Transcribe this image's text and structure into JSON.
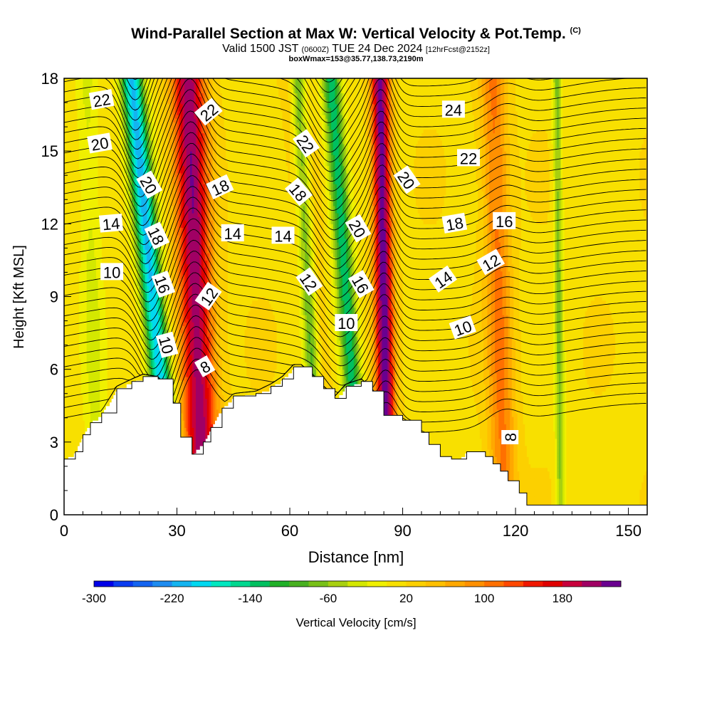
{
  "header": {
    "title": "Wind-Parallel Section at Max W: Vertical Velocity & Pot.Temp.",
    "copyright": "(C)",
    "subtitle_main": "Valid 1500 JST",
    "subtitle_utc": "(0600Z)",
    "subtitle_date": "TUE 24 Dec 2024",
    "subtitle_fcst": "[12hrFcst@2152z]",
    "box_info": "boxWmax=153@35.77,138.73,2190m"
  },
  "chart_data": {
    "type": "heatmap",
    "xlabel": "Distance [nm]",
    "ylabel": "Height [Kft MSL]",
    "xlim": [
      0,
      155
    ],
    "ylim": [
      0,
      18
    ],
    "x_ticks": [
      0,
      30,
      60,
      90,
      120,
      150
    ],
    "y_ticks": [
      0,
      3,
      6,
      9,
      12,
      15,
      18
    ],
    "colorbar": {
      "label": "Vertical Velocity [cm/s]",
      "tick_labels": [
        -300,
        -220,
        -140,
        -60,
        20,
        100,
        180
      ],
      "levels": [
        -300,
        -280,
        -260,
        -240,
        -220,
        -200,
        -180,
        -160,
        -140,
        -120,
        -100,
        -80,
        -60,
        -40,
        -20,
        0,
        20,
        40,
        60,
        80,
        100,
        120,
        140,
        160,
        180,
        200,
        220
      ],
      "colors": [
        "#0000e8",
        "#0a3cf0",
        "#1464f0",
        "#1e8cf0",
        "#14b4f0",
        "#00d8f0",
        "#00e8c0",
        "#00d890",
        "#00c060",
        "#20b028",
        "#48b020",
        "#78c018",
        "#a8d010",
        "#d4e800",
        "#f0f000",
        "#f8e000",
        "#fcd000",
        "#ffc000",
        "#ffa800",
        "#ff9000",
        "#ff7000",
        "#ff4800",
        "#f01800",
        "#e00000",
        "#c8003c",
        "#a00064",
        "#6a0090"
      ]
    },
    "terrain_profile": {
      "x_nm": [
        0,
        3,
        5,
        7,
        10,
        14,
        18,
        21,
        25,
        29,
        31,
        34,
        37,
        39,
        42,
        45,
        51,
        55,
        58,
        61,
        63,
        66,
        69,
        72,
        75,
        79,
        82,
        85,
        90,
        95,
        97,
        100,
        103,
        105,
        107,
        110,
        112,
        114,
        116,
        118,
        121,
        123,
        155
      ],
      "height_kft": [
        2.3,
        2.6,
        3.3,
        3.8,
        4.2,
        5.2,
        5.5,
        5.7,
        5.6,
        4.6,
        3.2,
        2.5,
        3.0,
        3.6,
        4.4,
        4.9,
        5.0,
        5.3,
        5.6,
        6.1,
        6.1,
        5.7,
        5.2,
        4.8,
        5.3,
        5.5,
        5.1,
        4.1,
        3.9,
        3.4,
        2.9,
        2.4,
        2.3,
        2.3,
        2.6,
        2.6,
        2.4,
        2.1,
        1.8,
        1.4,
        0.9,
        0.4,
        0.4
      ]
    },
    "updraft_bands": [
      {
        "x_base_nm": 37,
        "x_top_nm": 33,
        "width_nm": 4.5,
        "peak_cms": 200
      },
      {
        "x_base_nm": 86,
        "x_top_nm": 84,
        "width_nm": 2.5,
        "peak_cms": 220
      },
      {
        "x_base_nm": 117,
        "x_top_nm": 114,
        "width_nm": 3.5,
        "peak_cms": 90
      },
      {
        "x_base_nm": 71,
        "x_top_nm": 61,
        "width_nm": 3.0,
        "peak_cms": 40
      }
    ],
    "downdraft_bands": [
      {
        "x_base_nm": 29,
        "x_top_nm": 18,
        "width_nm": 3.0,
        "peak_cms": -220
      },
      {
        "x_base_nm": 79,
        "x_top_nm": 71,
        "width_nm": 2.5,
        "peak_cms": -150
      },
      {
        "x_base_nm": 68,
        "x_top_nm": 62,
        "width_nm": 2.0,
        "peak_cms": -120
      },
      {
        "x_base_nm": 9,
        "x_top_nm": 6,
        "width_nm": 3.0,
        "peak_cms": -40
      },
      {
        "x_base_nm": 132,
        "x_top_nm": 131,
        "width_nm": 1.2,
        "peak_cms": -80
      }
    ],
    "theta_contour_interval": 1,
    "contour_labels": [
      {
        "text": "22",
        "x": 10,
        "y": 17.1,
        "angle": -10
      },
      {
        "text": "20",
        "x": 9.5,
        "y": 15.3,
        "angle": -10
      },
      {
        "text": "14",
        "x": 12.5,
        "y": 12.0,
        "angle": -5
      },
      {
        "text": "10",
        "x": 12.7,
        "y": 10.0,
        "angle": 0
      },
      {
        "text": "20",
        "x": 22.5,
        "y": 13.6,
        "angle": 60
      },
      {
        "text": "18",
        "x": 24.5,
        "y": 11.5,
        "angle": 65
      },
      {
        "text": "16",
        "x": 26.2,
        "y": 9.5,
        "angle": 70
      },
      {
        "text": "10",
        "x": 27.2,
        "y": 7.0,
        "angle": 75
      },
      {
        "text": "22",
        "x": 38.5,
        "y": 16.6,
        "angle": -40
      },
      {
        "text": "18",
        "x": 41.5,
        "y": 13.5,
        "angle": -25
      },
      {
        "text": "14",
        "x": 44.8,
        "y": 11.6,
        "angle": 0
      },
      {
        "text": "12",
        "x": 38.5,
        "y": 9.0,
        "angle": -55
      },
      {
        "text": "8",
        "x": 37.5,
        "y": 6.1,
        "angle": -30
      },
      {
        "text": "14",
        "x": 58.2,
        "y": 11.5,
        "angle": 0
      },
      {
        "text": "22",
        "x": 64.2,
        "y": 15.3,
        "angle": 55
      },
      {
        "text": "18",
        "x": 62.2,
        "y": 13.3,
        "angle": 50
      },
      {
        "text": "12",
        "x": 65.0,
        "y": 9.6,
        "angle": 55
      },
      {
        "text": "10",
        "x": 75.0,
        "y": 7.9,
        "angle": 0
      },
      {
        "text": "20",
        "x": 78.0,
        "y": 11.8,
        "angle": 60
      },
      {
        "text": "16",
        "x": 78.8,
        "y": 9.5,
        "angle": 60
      },
      {
        "text": "20",
        "x": 91.0,
        "y": 13.8,
        "angle": 55
      },
      {
        "text": "24",
        "x": 103.5,
        "y": 16.7,
        "angle": 0
      },
      {
        "text": "22",
        "x": 107.5,
        "y": 14.7,
        "angle": 0
      },
      {
        "text": "18",
        "x": 103.8,
        "y": 12.0,
        "angle": -10
      },
      {
        "text": "16",
        "x": 117.0,
        "y": 12.1,
        "angle": 0
      },
      {
        "text": "14",
        "x": 100.8,
        "y": 9.7,
        "angle": -35
      },
      {
        "text": "12",
        "x": 113.5,
        "y": 10.4,
        "angle": -30
      },
      {
        "text": "10",
        "x": 106.0,
        "y": 7.7,
        "angle": -20
      },
      {
        "text": "8",
        "x": 118.7,
        "y": 3.2,
        "angle": -90
      }
    ]
  }
}
